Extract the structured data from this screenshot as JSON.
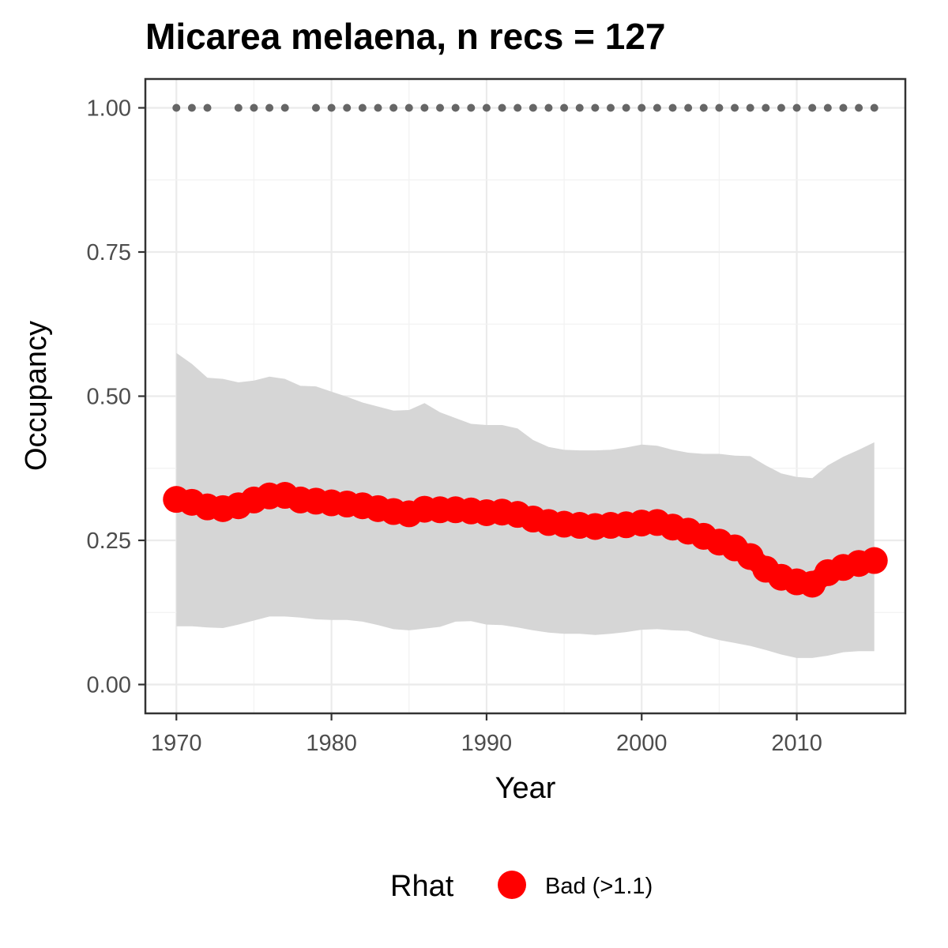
{
  "chart_data": {
    "type": "line",
    "title": "Micarea melaena, n recs = 127",
    "xlabel": "Year",
    "ylabel": "Occupancy",
    "xlim": [
      1968,
      2017
    ],
    "ylim": [
      -0.05,
      1.05
    ],
    "x_ticks": [
      1970,
      1980,
      1990,
      2000,
      2010
    ],
    "x_tick_labels": [
      "1970",
      "1980",
      "1990",
      "2000",
      "2010"
    ],
    "y_ticks": [
      0,
      0.25,
      0.5,
      0.75,
      1.0
    ],
    "y_tick_labels": [
      "0.00",
      "0.25",
      "0.50",
      "0.75",
      "1.00"
    ],
    "grid": true,
    "x": [
      1970,
      1971,
      1972,
      1973,
      1974,
      1975,
      1976,
      1977,
      1978,
      1979,
      1980,
      1981,
      1982,
      1983,
      1984,
      1985,
      1986,
      1987,
      1988,
      1989,
      1990,
      1991,
      1992,
      1993,
      1994,
      1995,
      1996,
      1997,
      1998,
      1999,
      2000,
      2001,
      2002,
      2003,
      2004,
      2005,
      2006,
      2007,
      2008,
      2009,
      2010,
      2011,
      2012,
      2013,
      2014,
      2015
    ],
    "series": [
      {
        "role": "mean",
        "color": "#ff0000",
        "values": [
          0.321,
          0.316,
          0.308,
          0.305,
          0.31,
          0.32,
          0.327,
          0.328,
          0.32,
          0.318,
          0.315,
          0.313,
          0.31,
          0.305,
          0.3,
          0.296,
          0.304,
          0.303,
          0.303,
          0.301,
          0.298,
          0.299,
          0.295,
          0.287,
          0.281,
          0.278,
          0.276,
          0.274,
          0.276,
          0.277,
          0.28,
          0.281,
          0.273,
          0.266,
          0.257,
          0.247,
          0.237,
          0.222,
          0.2,
          0.186,
          0.178,
          0.174,
          0.194,
          0.203,
          0.21,
          0.215
        ]
      },
      {
        "role": "upper_ci",
        "color": "#d6d6d6",
        "values": [
          0.575,
          0.556,
          0.532,
          0.53,
          0.524,
          0.527,
          0.534,
          0.53,
          0.518,
          0.517,
          0.508,
          0.499,
          0.489,
          0.482,
          0.475,
          0.476,
          0.488,
          0.472,
          0.462,
          0.452,
          0.45,
          0.45,
          0.444,
          0.424,
          0.412,
          0.407,
          0.406,
          0.406,
          0.407,
          0.411,
          0.416,
          0.414,
          0.407,
          0.402,
          0.4,
          0.4,
          0.397,
          0.396,
          0.38,
          0.366,
          0.36,
          0.358,
          0.38,
          0.395,
          0.407,
          0.42
        ]
      },
      {
        "role": "lower_ci",
        "color": "#d6d6d6",
        "values": [
          0.101,
          0.101,
          0.099,
          0.098,
          0.104,
          0.111,
          0.118,
          0.118,
          0.116,
          0.113,
          0.112,
          0.112,
          0.109,
          0.103,
          0.096,
          0.094,
          0.097,
          0.1,
          0.109,
          0.11,
          0.104,
          0.103,
          0.099,
          0.094,
          0.09,
          0.088,
          0.088,
          0.086,
          0.088,
          0.091,
          0.095,
          0.096,
          0.094,
          0.093,
          0.084,
          0.077,
          0.072,
          0.067,
          0.06,
          0.052,
          0.046,
          0.046,
          0.05,
          0.056,
          0.058,
          0.058
        ]
      }
    ],
    "record_years": [
      1970,
      1971,
      1972,
      1974,
      1975,
      1976,
      1977,
      1979,
      1980,
      1981,
      1982,
      1983,
      1984,
      1985,
      1986,
      1987,
      1988,
      1989,
      1990,
      1991,
      1992,
      1993,
      1994,
      1995,
      1996,
      1997,
      1998,
      1999,
      2000,
      2001,
      2002,
      2003,
      2004,
      2005,
      2006,
      2007,
      2008,
      2009,
      2010,
      2011,
      2012,
      2013,
      2014,
      2015
    ],
    "record_value": 1.0,
    "record_color": "#666666",
    "legend": {
      "title": "Rhat",
      "position": "bottom",
      "entries": [
        {
          "label": "Bad (>1.1)",
          "color": "#ff0000"
        }
      ]
    }
  }
}
